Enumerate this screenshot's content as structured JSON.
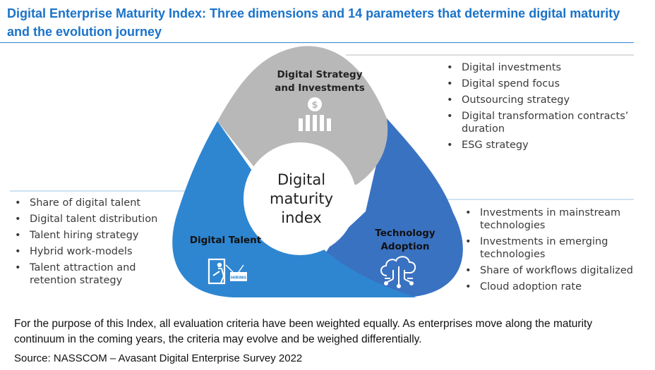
{
  "title": "Digital Enterprise Maturity Index: Three dimensions and 14 parameters that determine digital maturity and the evolution journey",
  "center": {
    "label": "Digital\nmaturity\nindex"
  },
  "segments": {
    "strategy": {
      "label": "Digital Strategy and Investments",
      "color": "#b8b8b8",
      "icon": "dollar-bar-chart-icon",
      "items": [
        "Digital investments",
        "Digital spend focus",
        "Outsourcing strategy",
        "Digital transformation contracts’ duration",
        "ESG strategy"
      ]
    },
    "talent": {
      "label": "Digital Talent",
      "color": "#2e86d1",
      "icon": "hiring-icon",
      "icon_text": "HIRING",
      "items": [
        "Share of digital talent",
        "Digital talent distribution",
        "Talent hiring strategy",
        "Hybrid work-models",
        "Talent attraction and retention strategy"
      ]
    },
    "technology": {
      "label": "Technology Adoption",
      "color": "#3a72c2",
      "icon": "cloud-network-icon",
      "items": [
        "Investments in mainstream technologies",
        "Investments in emerging technologies",
        "Share of workflows digitalized",
        "Cloud adoption rate"
      ]
    }
  },
  "note": "For the purpose of this Index, all evaluation criteria have been weighted equally. As enterprises move along the maturity continuum in the coming years, the criteria may evolve and be weighed differentially.",
  "source": "Source: NASSCOM – Avasant Digital Enterprise Survey 2022"
}
